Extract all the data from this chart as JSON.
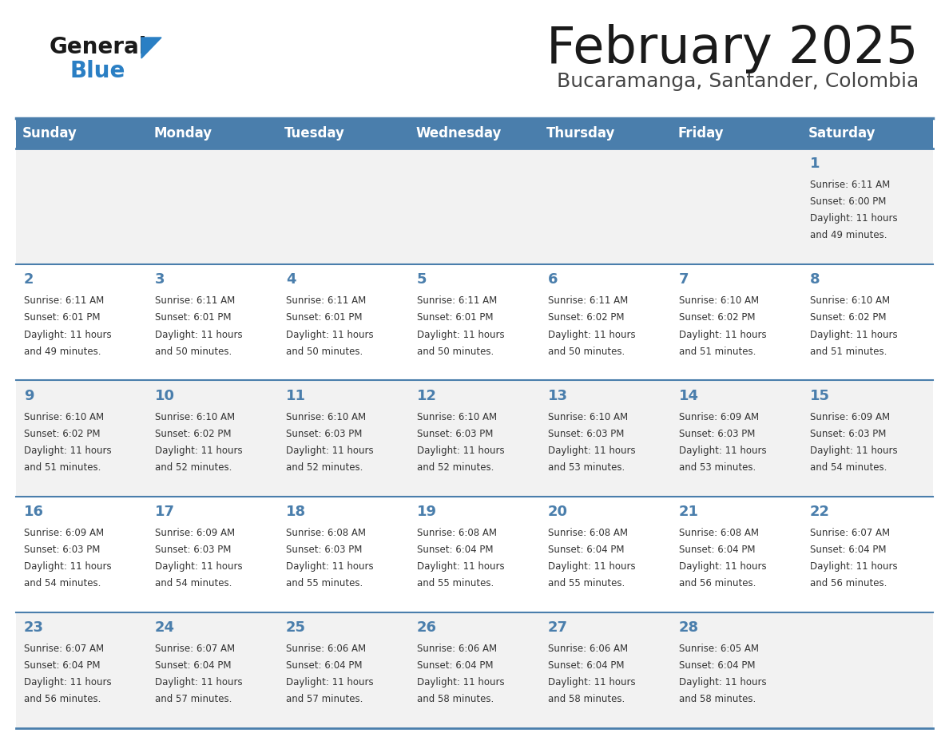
{
  "title": "February 2025",
  "subtitle": "Bucaramanga, Santander, Colombia",
  "header_bg_color": "#4a7eac",
  "header_text_color": "#ffffff",
  "cell_bg_color1": "#f2f2f2",
  "cell_bg_color2": "#ffffff",
  "day_number_color": "#4a7eac",
  "info_text_color": "#333333",
  "border_color": "#4a7eac",
  "separator_color": "#aaaacc",
  "days_of_week": [
    "Sunday",
    "Monday",
    "Tuesday",
    "Wednesday",
    "Thursday",
    "Friday",
    "Saturday"
  ],
  "weeks": [
    [
      {
        "day": null,
        "sunrise": null,
        "sunset": null,
        "daylight": null
      },
      {
        "day": null,
        "sunrise": null,
        "sunset": null,
        "daylight": null
      },
      {
        "day": null,
        "sunrise": null,
        "sunset": null,
        "daylight": null
      },
      {
        "day": null,
        "sunrise": null,
        "sunset": null,
        "daylight": null
      },
      {
        "day": null,
        "sunrise": null,
        "sunset": null,
        "daylight": null
      },
      {
        "day": null,
        "sunrise": null,
        "sunset": null,
        "daylight": null
      },
      {
        "day": 1,
        "sunrise": "6:11 AM",
        "sunset": "6:00 PM",
        "daylight": "11 hours and 49 minutes."
      }
    ],
    [
      {
        "day": 2,
        "sunrise": "6:11 AM",
        "sunset": "6:01 PM",
        "daylight": "11 hours and 49 minutes."
      },
      {
        "day": 3,
        "sunrise": "6:11 AM",
        "sunset": "6:01 PM",
        "daylight": "11 hours and 50 minutes."
      },
      {
        "day": 4,
        "sunrise": "6:11 AM",
        "sunset": "6:01 PM",
        "daylight": "11 hours and 50 minutes."
      },
      {
        "day": 5,
        "sunrise": "6:11 AM",
        "sunset": "6:01 PM",
        "daylight": "11 hours and 50 minutes."
      },
      {
        "day": 6,
        "sunrise": "6:11 AM",
        "sunset": "6:02 PM",
        "daylight": "11 hours and 50 minutes."
      },
      {
        "day": 7,
        "sunrise": "6:10 AM",
        "sunset": "6:02 PM",
        "daylight": "11 hours and 51 minutes."
      },
      {
        "day": 8,
        "sunrise": "6:10 AM",
        "sunset": "6:02 PM",
        "daylight": "11 hours and 51 minutes."
      }
    ],
    [
      {
        "day": 9,
        "sunrise": "6:10 AM",
        "sunset": "6:02 PM",
        "daylight": "11 hours and 51 minutes."
      },
      {
        "day": 10,
        "sunrise": "6:10 AM",
        "sunset": "6:02 PM",
        "daylight": "11 hours and 52 minutes."
      },
      {
        "day": 11,
        "sunrise": "6:10 AM",
        "sunset": "6:03 PM",
        "daylight": "11 hours and 52 minutes."
      },
      {
        "day": 12,
        "sunrise": "6:10 AM",
        "sunset": "6:03 PM",
        "daylight": "11 hours and 52 minutes."
      },
      {
        "day": 13,
        "sunrise": "6:10 AM",
        "sunset": "6:03 PM",
        "daylight": "11 hours and 53 minutes."
      },
      {
        "day": 14,
        "sunrise": "6:09 AM",
        "sunset": "6:03 PM",
        "daylight": "11 hours and 53 minutes."
      },
      {
        "day": 15,
        "sunrise": "6:09 AM",
        "sunset": "6:03 PM",
        "daylight": "11 hours and 54 minutes."
      }
    ],
    [
      {
        "day": 16,
        "sunrise": "6:09 AM",
        "sunset": "6:03 PM",
        "daylight": "11 hours and 54 minutes."
      },
      {
        "day": 17,
        "sunrise": "6:09 AM",
        "sunset": "6:03 PM",
        "daylight": "11 hours and 54 minutes."
      },
      {
        "day": 18,
        "sunrise": "6:08 AM",
        "sunset": "6:03 PM",
        "daylight": "11 hours and 55 minutes."
      },
      {
        "day": 19,
        "sunrise": "6:08 AM",
        "sunset": "6:04 PM",
        "daylight": "11 hours and 55 minutes."
      },
      {
        "day": 20,
        "sunrise": "6:08 AM",
        "sunset": "6:04 PM",
        "daylight": "11 hours and 55 minutes."
      },
      {
        "day": 21,
        "sunrise": "6:08 AM",
        "sunset": "6:04 PM",
        "daylight": "11 hours and 56 minutes."
      },
      {
        "day": 22,
        "sunrise": "6:07 AM",
        "sunset": "6:04 PM",
        "daylight": "11 hours and 56 minutes."
      }
    ],
    [
      {
        "day": 23,
        "sunrise": "6:07 AM",
        "sunset": "6:04 PM",
        "daylight": "11 hours and 56 minutes."
      },
      {
        "day": 24,
        "sunrise": "6:07 AM",
        "sunset": "6:04 PM",
        "daylight": "11 hours and 57 minutes."
      },
      {
        "day": 25,
        "sunrise": "6:06 AM",
        "sunset": "6:04 PM",
        "daylight": "11 hours and 57 minutes."
      },
      {
        "day": 26,
        "sunrise": "6:06 AM",
        "sunset": "6:04 PM",
        "daylight": "11 hours and 58 minutes."
      },
      {
        "day": 27,
        "sunrise": "6:06 AM",
        "sunset": "6:04 PM",
        "daylight": "11 hours and 58 minutes."
      },
      {
        "day": 28,
        "sunrise": "6:05 AM",
        "sunset": "6:04 PM",
        "daylight": "11 hours and 58 minutes."
      },
      {
        "day": null,
        "sunrise": null,
        "sunset": null,
        "daylight": null
      }
    ]
  ],
  "logo_color_general": "#1a1a1a",
  "logo_color_blue": "#2a7fc4",
  "logo_triangle_color": "#2a7fc4",
  "title_color": "#1a1a1a",
  "subtitle_color": "#444444"
}
